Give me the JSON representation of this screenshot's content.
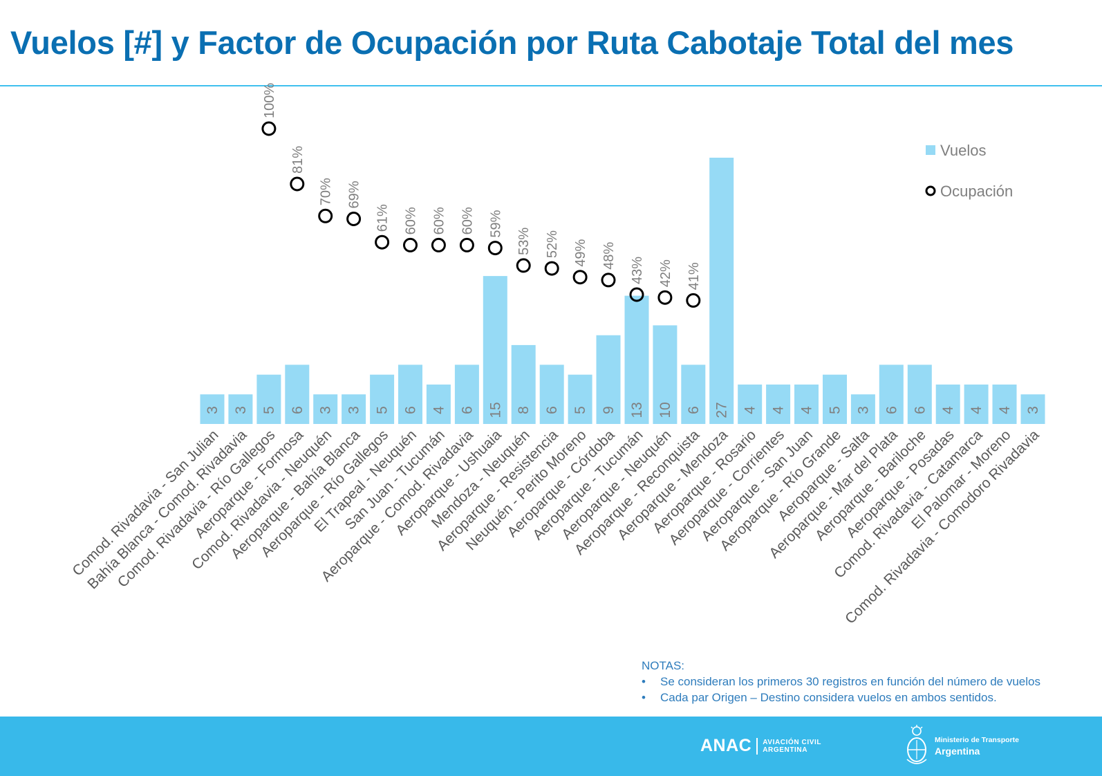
{
  "title": "Vuelos [#] y Factor de Ocupación por Ruta Cabotaje Total del mes",
  "colors": {
    "title": "#0a6fb2",
    "rule": "#3fc0ee",
    "bar": "#96daf5",
    "label": "#7f7f7f",
    "axis_label": "#595959",
    "notes": "#2e7cbc",
    "footer": "#38b9ea"
  },
  "chart_data": {
    "type": "bar",
    "categories": [
      "Comod. Rivadavia - San Julian",
      "Bahía Blanca - Comod. Rivadavia",
      "Comod. Rivadavia - Río Gallegos",
      "Aeroparque - Formosa",
      "Comod. Rivadavia - Neuquén",
      "Aeroparque - Bahía Blanca",
      "Aeroparque - Río Gallegos",
      "El Trapeal - Neuquén",
      "San Juan - Tucumán",
      "Aeroparque - Comod. Rivadavia",
      "Aeroparque - Ushuaia",
      "Mendoza - Neuquén",
      "Aeroparque - Resistencia",
      "Neuquén - Perito Moreno",
      "Aeroparque - Córdoba",
      "Aeroparque - Tucumán",
      "Aeroparque - Neuquén",
      "Aeroparque - Reconquista",
      "Aeroparque - Mendoza",
      "Aeroparque - Rosario",
      "Aeroparque - Corrientes",
      "Aeroparque - San Juan",
      "Aeroparque - Río Grande",
      "Aeroparque - Salta",
      "Aeroparque - Mar del Plata",
      "Aeroparque - Bariloche",
      "Aeroparque - Posadas",
      "Comod. Rivadavia - Catamarca",
      "El Palomar - Moreno",
      "Comod. Rivadavia - Comodoro Rivadavia"
    ],
    "series": [
      {
        "name": "Vuelos",
        "kind": "bar",
        "values": [
          3,
          3,
          5,
          6,
          3,
          3,
          5,
          6,
          4,
          6,
          15,
          8,
          6,
          5,
          9,
          13,
          10,
          6,
          27,
          4,
          4,
          4,
          5,
          3,
          6,
          6,
          4,
          4,
          4,
          3
        ],
        "labels": [
          "3",
          "3",
          "5",
          "6",
          "3",
          "3",
          "5",
          "6",
          "4",
          "6",
          "15",
          "8",
          "6",
          "5",
          "9",
          "13",
          "10",
          "6",
          "27",
          "4",
          "4",
          "4",
          "5",
          "3",
          "6",
          "6",
          "4",
          "4",
          "4",
          "3"
        ]
      },
      {
        "name": "Ocupación",
        "kind": "marker",
        "values": [
          null,
          null,
          1.0,
          0.81,
          0.7,
          0.69,
          0.61,
          0.6,
          0.6,
          0.6,
          0.59,
          0.53,
          0.52,
          0.49,
          0.48,
          0.43,
          0.42,
          0.41,
          null,
          null,
          null,
          null,
          null,
          null,
          null,
          null,
          null,
          null,
          null,
          null
        ],
        "labels": [
          null,
          null,
          "100%",
          "81%",
          "70%",
          "69%",
          "61%",
          "60%",
          "60%",
          "60%",
          "59%",
          "53%",
          "52%",
          "49%",
          "48%",
          "43%",
          "42%",
          "41%",
          null,
          null,
          null,
          null,
          null,
          null,
          null,
          null,
          null,
          null,
          null,
          null
        ]
      }
    ],
    "legend": {
      "placement": "top-right"
    }
  },
  "notes": {
    "heading": "NOTAS:",
    "items": [
      "Se consideran los primeros 30 registros en función del número de vuelos",
      "Cada par Origen – Destino considera vuelos en ambos sentidos."
    ]
  },
  "footer": {
    "anac_word": "ANAC",
    "anac_sub_line1": "AVIACIÓN CIVIL",
    "anac_sub_line2": "ARGENTINA",
    "ministry_line1": "Ministerio de Transporte",
    "ministry_line2": "Argentina"
  }
}
